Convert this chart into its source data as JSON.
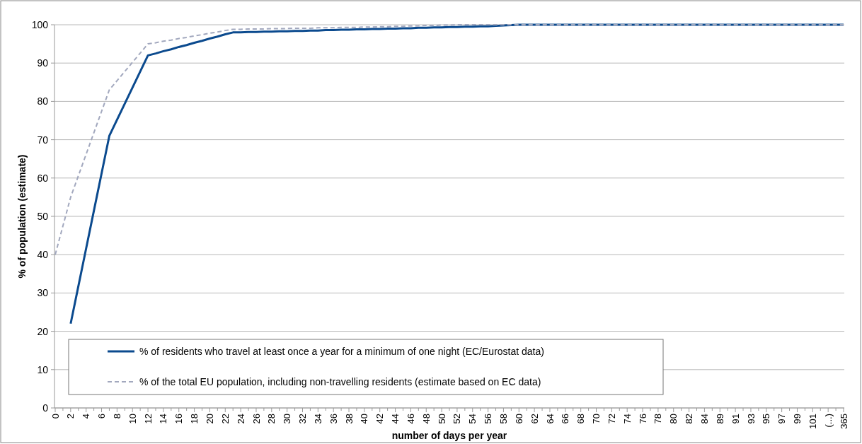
{
  "chart_data": {
    "type": "line",
    "xlabel": "number of days per year",
    "ylabel": "% of population  (estimate)",
    "categories": [
      "0",
      null,
      "2",
      null,
      "4",
      null,
      "6",
      null,
      "8",
      null,
      "10",
      null,
      "12",
      null,
      "14",
      null,
      "16",
      null,
      "18",
      null,
      "20",
      null,
      "22",
      null,
      "24",
      null,
      "26",
      null,
      "28",
      null,
      "30",
      null,
      "32",
      null,
      "34",
      null,
      "36",
      null,
      "38",
      null,
      "40",
      null,
      "42",
      null,
      "44",
      null,
      "46",
      null,
      "48",
      null,
      "50",
      null,
      "52",
      null,
      "54",
      null,
      "56",
      null,
      "58",
      null,
      "60",
      null,
      "62",
      null,
      "64",
      null,
      "66",
      null,
      "68",
      null,
      "70",
      null,
      "72",
      null,
      "74",
      null,
      "76",
      null,
      "78",
      null,
      "80",
      null,
      "82",
      null,
      "84",
      null,
      "89",
      null,
      "91",
      null,
      "93",
      null,
      "95",
      null,
      "97",
      null,
      "99",
      null,
      "101",
      null,
      "(...)",
      null,
      "365"
    ],
    "series": [
      {
        "name": "% of residents who travel at least once a year for a minimum of one night (EC/Eurostat data)",
        "color": "#0b4a8e",
        "line_style": "solid",
        "values": [
          null,
          null,
          22,
          31.8,
          41.6,
          51.4,
          61.2,
          71,
          75.2,
          79.4,
          83.6,
          87.8,
          92,
          92.5,
          93.1,
          93.6,
          94.2,
          94.7,
          95.3,
          95.8,
          96.4,
          96.9,
          97.5,
          98,
          98,
          98.1,
          98.1,
          98.2,
          98.2,
          98.3,
          98.3,
          98.4,
          98.4,
          98.5,
          98.5,
          98.6,
          98.6,
          98.7,
          98.7,
          98.8,
          98.8,
          98.9,
          98.9,
          99,
          99,
          99.1,
          99.1,
          99.2,
          99.2,
          99.3,
          99.3,
          99.4,
          99.4,
          99.5,
          99.5,
          99.6,
          99.6,
          99.7,
          99.8,
          99.9,
          100,
          100,
          100,
          100,
          100,
          100,
          100,
          100,
          100,
          100,
          100,
          100,
          100,
          100,
          100,
          100,
          100,
          100,
          100,
          100,
          100,
          100,
          100,
          100,
          100,
          100,
          100,
          100,
          100,
          100,
          100,
          100,
          100,
          100,
          100,
          100,
          100,
          100,
          100,
          100,
          100,
          100,
          100
        ]
      },
      {
        "name": "% of the total  EU population, including non-travelling residents (estimate based on EC data)",
        "color": "#a2a8be",
        "line_style": "dashed",
        "values": [
          40,
          47.5,
          55,
          60.6,
          66.2,
          71.8,
          77.4,
          83,
          85.4,
          87.8,
          90.2,
          92.6,
          95,
          95.3,
          95.7,
          96,
          96.4,
          96.7,
          97.1,
          97.4,
          97.8,
          98.1,
          98.5,
          98.8,
          98.8,
          98.9,
          98.9,
          98.9,
          99,
          99,
          99,
          99.1,
          99.1,
          99.1,
          99.2,
          99.2,
          99.2,
          99.3,
          99.3,
          99.3,
          99.4,
          99.4,
          99.5,
          99.5,
          99.6,
          99.6,
          99.7,
          99.7,
          99.8,
          99.8,
          99.9,
          99.9,
          100,
          100,
          100,
          100,
          100,
          100,
          100,
          100,
          100,
          100,
          100,
          100,
          100,
          100,
          100,
          100,
          100,
          100,
          100,
          100,
          100,
          100,
          100,
          100,
          100,
          100,
          100,
          100,
          100,
          100,
          100,
          100,
          100,
          100,
          100,
          100,
          100,
          100,
          100,
          100,
          100,
          100,
          100,
          100,
          100,
          100,
          100,
          100,
          100,
          100,
          100
        ]
      }
    ],
    "ylim": [
      0,
      100
    ],
    "yticks": [
      0,
      10,
      20,
      30,
      40,
      50,
      60,
      70,
      80,
      90,
      100
    ],
    "grid": "y",
    "legend": "bottom left",
    "marker": "none"
  }
}
